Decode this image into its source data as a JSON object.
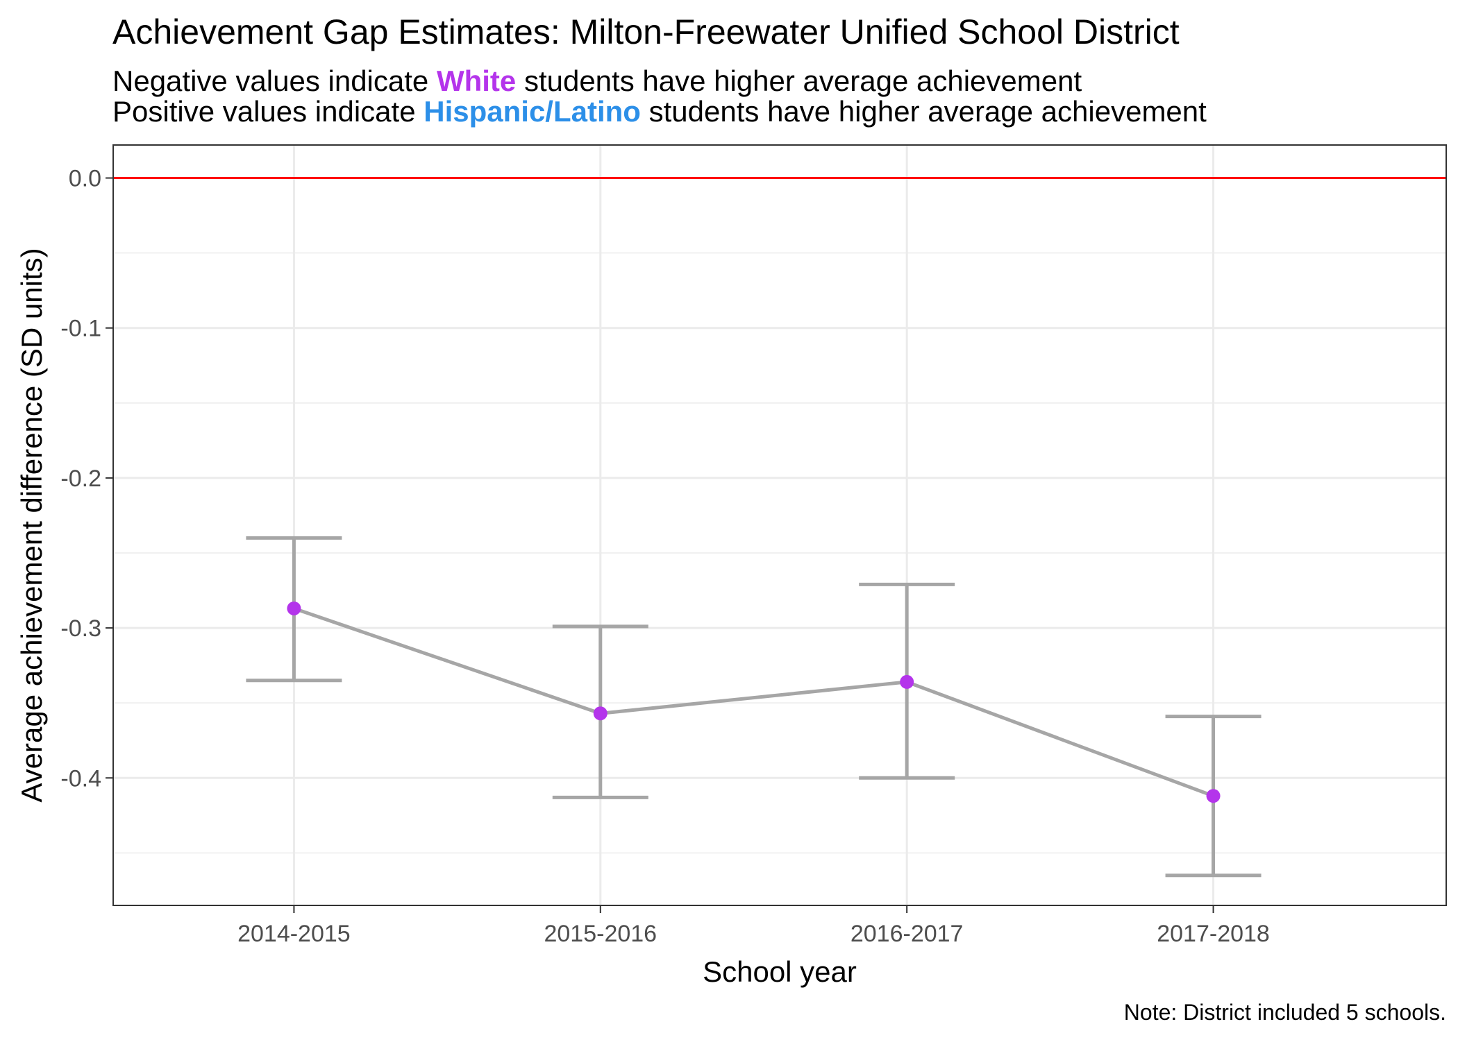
{
  "chart_data": {
    "type": "line",
    "title": "Achievement Gap Estimates: Milton-Freewater Unified School District",
    "subtitle": {
      "line1": {
        "before": "Negative values indicate",
        "group": "White",
        "after": "students have higher average achievement",
        "group_color": "#b434eb"
      },
      "line2": {
        "before": "Positive values indicate",
        "group": "Hispanic/Latino",
        "after": "students have higher average achievement",
        "group_color": "#2c8fe8"
      }
    },
    "xlabel": "School year",
    "ylabel": "Average achievement difference (SD units)",
    "categories": [
      "2014-2015",
      "2015-2016",
      "2016-2017",
      "2017-2018"
    ],
    "series": [
      {
        "values": [
          -0.287,
          -0.357,
          -0.336,
          -0.412
        ],
        "lower": [
          -0.335,
          -0.413,
          -0.4,
          -0.465
        ],
        "upper": [
          -0.24,
          -0.299,
          -0.271,
          -0.359
        ],
        "point_color": "#b434eb",
        "line_color": "#a6a6a6"
      }
    ],
    "ylim": [
      -0.485,
      0.022
    ],
    "yticks": [
      "0.0",
      "-0.1",
      "-0.2",
      "-0.3",
      "-0.4"
    ],
    "ytick_values": [
      0.0,
      -0.1,
      -0.2,
      -0.3,
      -0.4
    ],
    "reference_line": {
      "y": 0.0,
      "color": "#ff0000"
    },
    "grid": true,
    "note": "Note: District included 5 schools."
  }
}
